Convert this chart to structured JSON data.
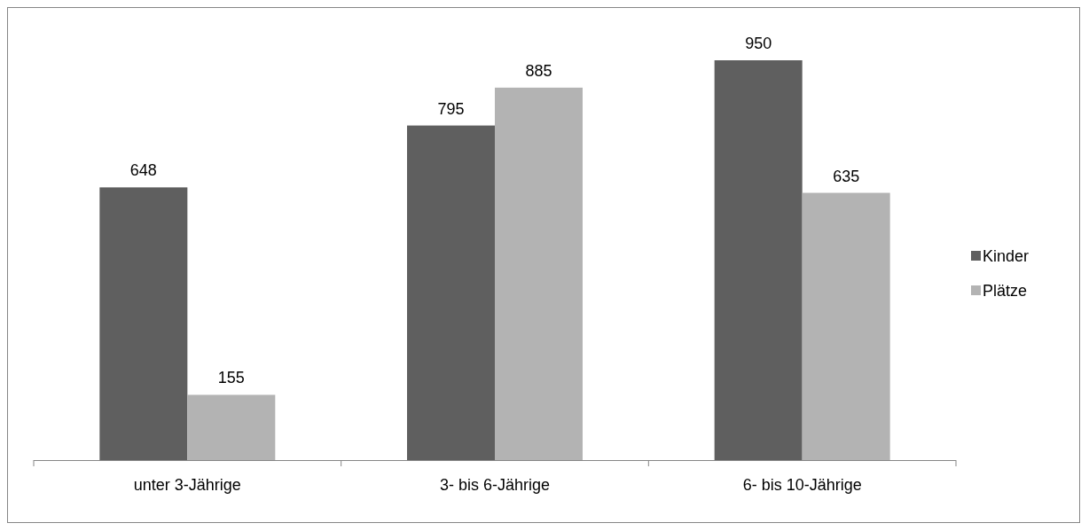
{
  "chart_data": {
    "type": "bar",
    "categories": [
      "unter 3-Jährige",
      "3- bis 6-Jährige",
      "6- bis 10-Jährige"
    ],
    "series": [
      {
        "name": "Kinder",
        "color": "#5f5f5f",
        "values": [
          648,
          795,
          950
        ]
      },
      {
        "name": "Plätze",
        "color": "#b3b3b3",
        "values": [
          155,
          885,
          635
        ]
      }
    ],
    "data_labels": true,
    "legend": "right"
  }
}
